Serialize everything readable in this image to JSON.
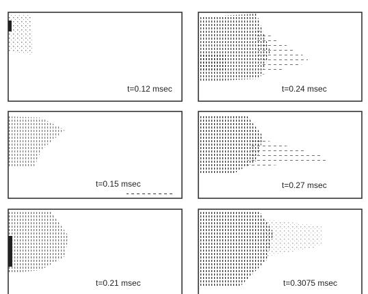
{
  "panels": [
    {
      "label": "t=0.12 msec"
    },
    {
      "label": "t=0.24 msec"
    },
    {
      "label": "t=0.15 msec"
    },
    {
      "label": "t=0.27 msec"
    },
    {
      "label": "t=0.21 msec"
    },
    {
      "label": "t=0.3075 msec"
    }
  ]
}
